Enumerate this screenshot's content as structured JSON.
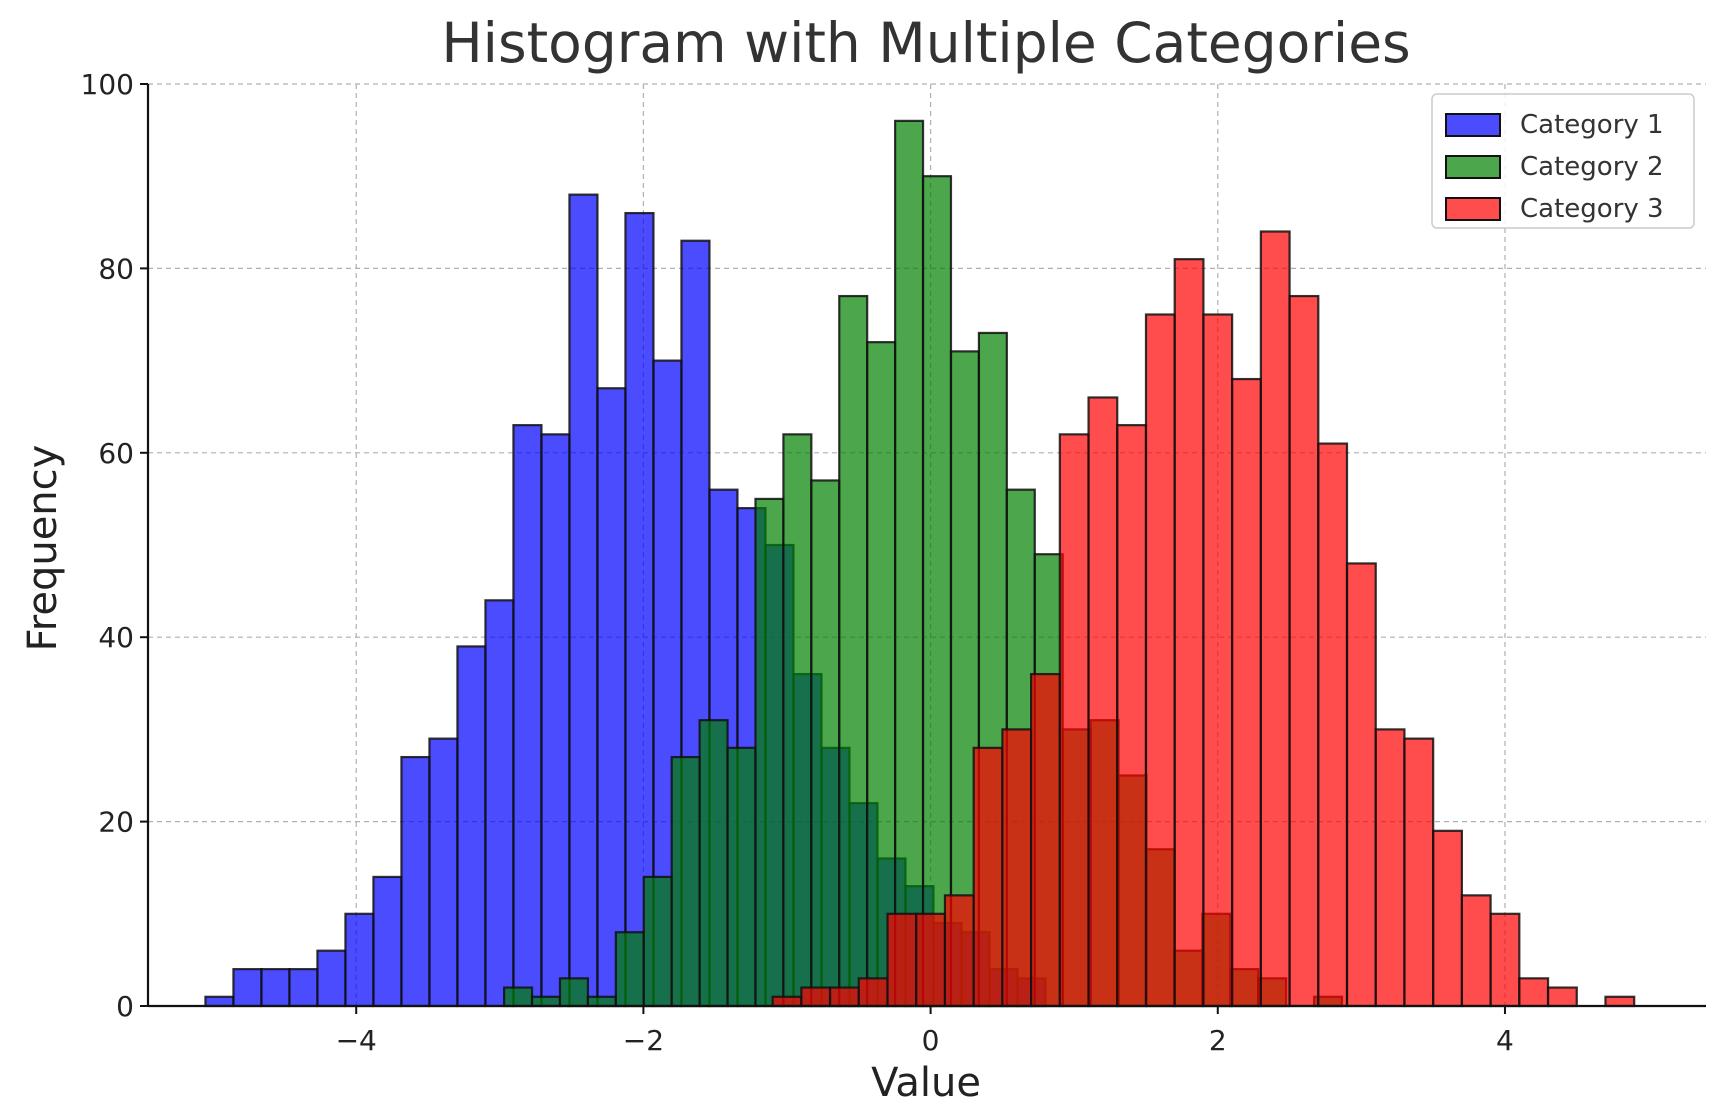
{
  "chart_data": {
    "type": "bar",
    "title": "Histogram with Multiple Categories",
    "xlabel": "Value",
    "ylabel": "Frequency",
    "xlim": [
      -5.45,
      5.4
    ],
    "ylim": [
      0,
      100
    ],
    "xticks": [
      -4,
      -2,
      0,
      2,
      4
    ],
    "xtick_labels": [
      "−4",
      "−2",
      "0",
      "2",
      "4"
    ],
    "yticks": [
      0,
      20,
      40,
      60,
      80,
      100
    ],
    "ytick_labels": [
      "0",
      "20",
      "40",
      "60",
      "80",
      "100"
    ],
    "grid": true,
    "legend_position": "top-right",
    "series": [
      {
        "name": "Category 1",
        "color": "#0000ff",
        "bin_start": -5.05,
        "bin_width": 0.195,
        "values": [
          1,
          4,
          4,
          4,
          6,
          10,
          14,
          27,
          29,
          39,
          44,
          63,
          62,
          88,
          67,
          86,
          70,
          83,
          56,
          54,
          50,
          36,
          28,
          22,
          16,
          13,
          9,
          8,
          4,
          3
        ]
      },
      {
        "name": "Category 2",
        "color": "#008000",
        "bin_start": -2.97,
        "bin_width": 0.1945,
        "values": [
          2,
          1,
          3,
          1,
          8,
          14,
          27,
          31,
          28,
          55,
          62,
          57,
          77,
          72,
          96,
          90,
          71,
          73,
          56,
          49,
          30,
          31,
          25,
          17,
          6,
          10,
          4,
          3,
          0,
          1
        ]
      },
      {
        "name": "Category 3",
        "color": "#ff0000",
        "bin_start": -1.1,
        "bin_width": 0.2,
        "values": [
          1,
          2,
          2,
          3,
          10,
          10,
          12,
          28,
          30,
          36,
          62,
          66,
          63,
          75,
          81,
          75,
          68,
          84,
          77,
          61,
          48,
          30,
          29,
          19,
          12,
          10,
          3,
          2,
          0,
          1
        ]
      }
    ]
  }
}
